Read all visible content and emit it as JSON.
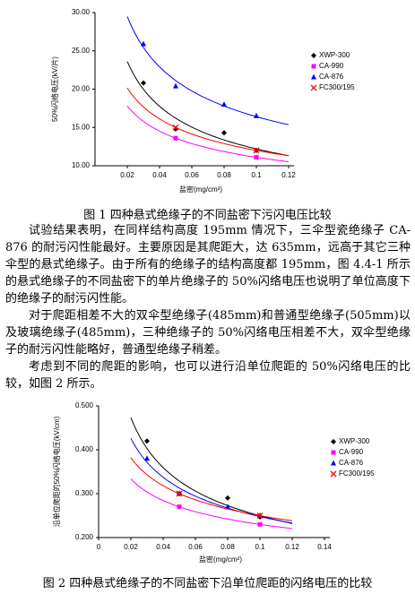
{
  "chart_data": [
    {
      "type": "scatter",
      "x_label": "盐密(mg/cm²)",
      "y_label": "50%闪络电压(kV/片)",
      "xlim": [
        0,
        0.12
      ],
      "xticks": [
        0.02,
        0.04,
        0.06,
        0.08,
        0.1,
        0.12
      ],
      "ylim": [
        10,
        30
      ],
      "yticks": [
        {
          "value": 10,
          "label": "10.00"
        },
        {
          "value": 15,
          "label": "15.00"
        },
        {
          "value": 20,
          "label": "20.00"
        },
        {
          "value": 25,
          "label": "25.00"
        },
        {
          "value": 30,
          "label": "30.00"
        }
      ],
      "grid": false,
      "trendline": "power",
      "legend": "right",
      "series": [
        {
          "name": "XWP-300",
          "color": "#000000",
          "marker": "diamond",
          "x": [
            0.03,
            0.05,
            0.08,
            0.1
          ],
          "values": [
            20.8,
            14.8,
            14.3,
            12.0
          ]
        },
        {
          "name": "CA-990",
          "color": "#ff00ff",
          "marker": "square",
          "x": [
            0.05,
            0.1
          ],
          "values": [
            13.6,
            11.1
          ]
        },
        {
          "name": "CA-876",
          "color": "#0000ff",
          "marker": "triangle",
          "x": [
            0.03,
            0.05,
            0.08,
            0.1
          ],
          "values": [
            25.9,
            20.4,
            18.0,
            16.5
          ]
        },
        {
          "name": "FC300/195",
          "color": "#ff0000",
          "marker": "x",
          "x": [
            0.05,
            0.1
          ],
          "values": [
            15.0,
            12.0
          ]
        }
      ]
    },
    {
      "type": "scatter",
      "x_label": "盐密(mg/cm²)",
      "y_label": "沿单位爬距的50%闪络电压(kV/cm)",
      "xlim": [
        0,
        0.14
      ],
      "xticks": [
        0,
        0.02,
        0.04,
        0.06,
        0.08,
        0.1,
        0.12,
        0.14
      ],
      "ylim": [
        0.2,
        0.5
      ],
      "yticks": [
        {
          "value": 0.2,
          "label": "0.200"
        },
        {
          "value": 0.3,
          "label": "0.300"
        },
        {
          "value": 0.4,
          "label": "0.400"
        },
        {
          "value": 0.5,
          "label": "0.500"
        }
      ],
      "grid": false,
      "trendline": "power",
      "legend": "right",
      "series": [
        {
          "name": "XWP-300",
          "color": "#000000",
          "marker": "diamond",
          "x": [
            0.03,
            0.05,
            0.08,
            0.1
          ],
          "values": [
            0.42,
            0.3,
            0.29,
            0.247
          ]
        },
        {
          "name": "CA-990",
          "color": "#ff00ff",
          "marker": "square",
          "x": [
            0.05,
            0.1
          ],
          "values": [
            0.27,
            0.23
          ]
        },
        {
          "name": "CA-876",
          "color": "#0000ff",
          "marker": "triangle",
          "x": [
            0.03,
            0.05,
            0.08,
            0.1
          ],
          "values": [
            0.38,
            0.3,
            0.27,
            0.25
          ]
        },
        {
          "name": "FC300/195",
          "color": "#ff0000",
          "marker": "x",
          "x": [
            0.05,
            0.1
          ],
          "values": [
            0.3,
            0.25
          ]
        }
      ]
    }
  ],
  "document": {
    "captions": [
      "图 1  四种悬式绝缘子的不同盐密下污闪电压比较",
      "图 2  四种悬式绝缘子的不同盐密下沿单位爬距的闪络电压的比较"
    ],
    "paragraphs": [
      "试验结果表明，在同样结构高度 195mm 情况下，三伞型瓷绝缘子 CA-876 的耐污闪性能最好。主要原因是其爬距大，达 635mm，远高于其它三种伞型的悬式绝缘子。由于所有的绝缘子的结构高度都 195mm，图 4.4-1 所示的悬式绝缘子的不同盐密下的单片绝缘子的 50%闪络电压也说明了单位高度下的绝缘子的耐污闪性能。",
      "对于爬距相差不大的双伞型绝缘子(485mm)和普通型绝缘子(505mm)以及玻璃绝缘子(485mm)，三种绝缘子的 50%闪络电压相差不大，双伞型绝缘子的耐污闪性能略好，普通型绝缘子稍差。",
      "考虑到不同的爬距的影响，也可以进行沿单位爬距的 50%闪络电压的比较，如图 2 所示。"
    ]
  }
}
